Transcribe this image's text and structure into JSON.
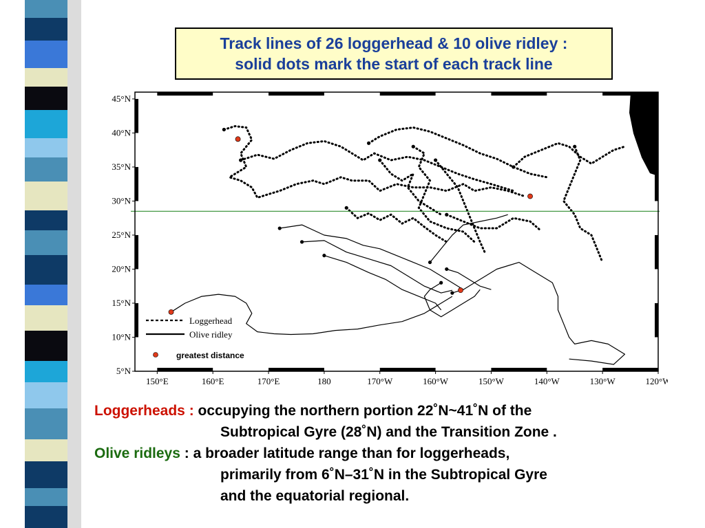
{
  "title": {
    "line1": "Track lines of 26 loggerhead & 10 olive ridley :",
    "line2": "solid dots mark the start of each track line"
  },
  "colors": {
    "title_text": "#1a3f9a",
    "title_bg": "#fffdc8",
    "loggerheads_label": "#cc1100",
    "olive_ridleys_label": "#1b6b10",
    "reference_line": "#2e8b2e",
    "start_marker": "#e03a1a"
  },
  "chart_data": {
    "type": "map",
    "xlabels": [
      "150°E",
      "160°E",
      "170°E",
      "180",
      "170°W",
      "160°W",
      "150°W",
      "140°W",
      "130°W",
      "120°W"
    ],
    "ylabels": [
      "45°N",
      "40°N",
      "35°N",
      "30°N",
      "25°N",
      "20°N",
      "15°N",
      "10°N",
      "5°N"
    ],
    "lon_range_east": [
      146,
      240
    ],
    "lat_range": [
      5,
      46
    ],
    "reference_line_lat": 28.5,
    "legend": {
      "position": "bottom-left",
      "loggerhead": "Loggerhead",
      "olive_ridley": "Olive ridley",
      "marker": "greatest distance"
    },
    "greatest_distance_points": [
      {
        "lon": 152.5,
        "lat": 13.7
      },
      {
        "lon": 164.5,
        "lat": 39.1
      },
      {
        "lon": 217.0,
        "lat": 30.7
      },
      {
        "lon": 204.5,
        "lat": 16.9
      }
    ],
    "loggerhead_tracks": [
      [
        [
          162,
          40.5
        ],
        [
          164,
          41
        ],
        [
          166,
          40.8
        ],
        [
          167,
          39
        ],
        [
          165,
          37
        ],
        [
          166,
          35
        ],
        [
          163,
          33.5
        ],
        [
          165,
          33
        ],
        [
          167,
          32
        ],
        [
          168,
          30.5
        ],
        [
          170,
          31
        ],
        [
          172,
          31.5
        ],
        [
          175,
          32.5
        ],
        [
          178,
          33
        ],
        [
          180,
          32.5
        ],
        [
          183,
          33.5
        ],
        [
          185,
          33
        ],
        [
          188,
          33
        ],
        [
          190,
          31.5
        ],
        [
          193,
          32.5
        ],
        [
          196,
          32
        ],
        [
          199,
          32
        ],
        [
          202,
          31.5
        ],
        [
          205,
          32.5
        ],
        [
          207,
          31.5
        ],
        [
          210,
          32
        ],
        [
          213,
          31.5
        ],
        [
          216,
          30.7
        ]
      ],
      [
        [
          165,
          36
        ],
        [
          168,
          36.8
        ],
        [
          171,
          36.2
        ],
        [
          174,
          37.5
        ],
        [
          177,
          38.5
        ],
        [
          180,
          38.8
        ],
        [
          183,
          38
        ],
        [
          185,
          37
        ],
        [
          187,
          36
        ],
        [
          189,
          37
        ],
        [
          192,
          36
        ],
        [
          195,
          36.5
        ],
        [
          198,
          36
        ],
        [
          201,
          35
        ],
        [
          204,
          34
        ],
        [
          207,
          33.2
        ],
        [
          210,
          32.5
        ],
        [
          214,
          31.5
        ]
      ],
      [
        [
          188,
          38.5
        ],
        [
          190,
          39.5
        ],
        [
          193,
          40.5
        ],
        [
          196,
          40.8
        ],
        [
          199,
          40.2
        ],
        [
          202,
          39.2
        ],
        [
          205,
          38.2
        ],
        [
          208,
          37
        ],
        [
          211,
          36.2
        ],
        [
          214,
          35
        ],
        [
          217,
          34
        ],
        [
          220,
          33.5
        ]
      ],
      [
        [
          196,
          38
        ],
        [
          198,
          37
        ],
        [
          197,
          35
        ],
        [
          199,
          33
        ],
        [
          198,
          31
        ],
        [
          197,
          29
        ],
        [
          199,
          27
        ],
        [
          202,
          26
        ],
        [
          205,
          25.5
        ],
        [
          207,
          24
        ]
      ],
      [
        [
          200,
          36
        ],
        [
          202,
          34
        ],
        [
          204,
          32
        ],
        [
          205,
          30
        ],
        [
          206,
          28
        ],
        [
          207,
          26
        ],
        [
          208,
          24
        ],
        [
          209,
          22.2
        ]
      ],
      [
        [
          214,
          35
        ],
        [
          216,
          36.5
        ],
        [
          219,
          37.5
        ],
        [
          222,
          38.5
        ],
        [
          224,
          38
        ],
        [
          226,
          36.5
        ],
        [
          228,
          35.5
        ],
        [
          230,
          36.5
        ],
        [
          232,
          37.5
        ],
        [
          234,
          38
        ]
      ],
      [
        [
          225,
          38
        ],
        [
          226,
          36
        ],
        [
          225,
          34
        ],
        [
          224,
          32
        ],
        [
          223,
          30
        ],
        [
          225,
          28
        ],
        [
          226,
          26
        ],
        [
          228,
          25
        ],
        [
          229,
          23
        ],
        [
          230,
          21
        ]
      ],
      [
        [
          184,
          29
        ],
        [
          186,
          27.5
        ],
        [
          188,
          28.2
        ],
        [
          190,
          27.2
        ],
        [
          192,
          28
        ],
        [
          194,
          26.7
        ],
        [
          196,
          27.5
        ],
        [
          198,
          26.2
        ],
        [
          200,
          25
        ],
        [
          202,
          24
        ]
      ],
      [
        [
          190,
          36
        ],
        [
          192,
          34
        ],
        [
          194,
          33
        ],
        [
          196,
          34
        ],
        [
          195,
          32
        ],
        [
          197,
          30
        ],
        [
          199,
          29
        ],
        [
          201,
          28
        ]
      ],
      [
        [
          202,
          28
        ],
        [
          205,
          27
        ],
        [
          208,
          26
        ],
        [
          211,
          26
        ],
        [
          214,
          27.5
        ],
        [
          217,
          27
        ],
        [
          219,
          25.6
        ]
      ]
    ],
    "olive_ridley_tracks": [
      [
        [
          152.5,
          13.7
        ],
        [
          155,
          15
        ],
        [
          158,
          16
        ],
        [
          161,
          16.3
        ],
        [
          164,
          16
        ],
        [
          166,
          15
        ],
        [
          167,
          13.5
        ],
        [
          166,
          12
        ],
        [
          168,
          10.8
        ],
        [
          171,
          10.5
        ],
        [
          174,
          10.4
        ],
        [
          178,
          10.5
        ],
        [
          182,
          11
        ],
        [
          186,
          11.2
        ],
        [
          190,
          11.8
        ],
        [
          194,
          12.3
        ],
        [
          198,
          13.5
        ],
        [
          201,
          15
        ],
        [
          203,
          16
        ]
      ],
      [
        [
          172,
          26
        ],
        [
          176,
          26.5
        ],
        [
          180,
          25
        ],
        [
          184,
          24.5
        ],
        [
          187,
          23.5
        ],
        [
          190,
          23
        ],
        [
          193,
          22
        ],
        [
          196,
          21
        ],
        [
          199,
          20
        ],
        [
          201,
          19
        ],
        [
          203,
          18
        ],
        [
          205,
          17
        ]
      ],
      [
        [
          176,
          24
        ],
        [
          180,
          24.2
        ],
        [
          184,
          22.5
        ],
        [
          188,
          21.5
        ],
        [
          192,
          20.5
        ],
        [
          195,
          19
        ],
        [
          198,
          17.5
        ],
        [
          201,
          16.5
        ],
        [
          203,
          16.9
        ]
      ],
      [
        [
          180,
          22
        ],
        [
          184,
          21
        ],
        [
          188,
          19.5
        ],
        [
          191,
          18.5
        ],
        [
          194,
          17
        ],
        [
          197,
          16
        ],
        [
          200,
          15
        ],
        [
          201,
          14
        ]
      ],
      [
        [
          203,
          16.5
        ],
        [
          205,
          17
        ],
        [
          207,
          18
        ],
        [
          209,
          19
        ],
        [
          211,
          20
        ],
        [
          213,
          20.5
        ],
        [
          215,
          21
        ],
        [
          217,
          20
        ],
        [
          219,
          19
        ],
        [
          221,
          18
        ],
        [
          222,
          16
        ],
        [
          222,
          14
        ],
        [
          223,
          12
        ],
        [
          224,
          10
        ],
        [
          225,
          9
        ],
        [
          228,
          9.5
        ],
        [
          231,
          9
        ],
        [
          234,
          7.5
        ],
        [
          232,
          6
        ],
        [
          228,
          6.5
        ],
        [
          224,
          6.8
        ]
      ],
      [
        [
          199,
          21
        ],
        [
          201,
          23
        ],
        [
          203,
          25
        ],
        [
          205,
          26.5
        ],
        [
          208,
          27
        ],
        [
          211,
          27.5
        ],
        [
          213,
          28
        ]
      ],
      [
        [
          201,
          18
        ],
        [
          199,
          17
        ],
        [
          198,
          16
        ],
        [
          199,
          14
        ],
        [
          201,
          13
        ],
        [
          203,
          14
        ],
        [
          205,
          15
        ],
        [
          207,
          16
        ],
        [
          208,
          17
        ]
      ],
      [
        [
          202,
          20
        ],
        [
          204,
          19.5
        ],
        [
          206,
          18.5
        ],
        [
          208,
          17.5
        ],
        [
          210,
          17
        ]
      ]
    ]
  },
  "notes": [
    {
      "label": "Loggerheads :",
      "lines": [
        "occupying the northern portion 22˚N~41˚N of the",
        "Subtropical Gyre (28˚N) and the Transition Zone ."
      ]
    },
    {
      "label": "Olive ridleys",
      "sep": " : ",
      "lines": [
        "a broader latitude range than for loggerheads,",
        "primarily from 6˚N–31˚N in the Subtropical Gyre",
        "and the equatorial regional."
      ]
    }
  ]
}
